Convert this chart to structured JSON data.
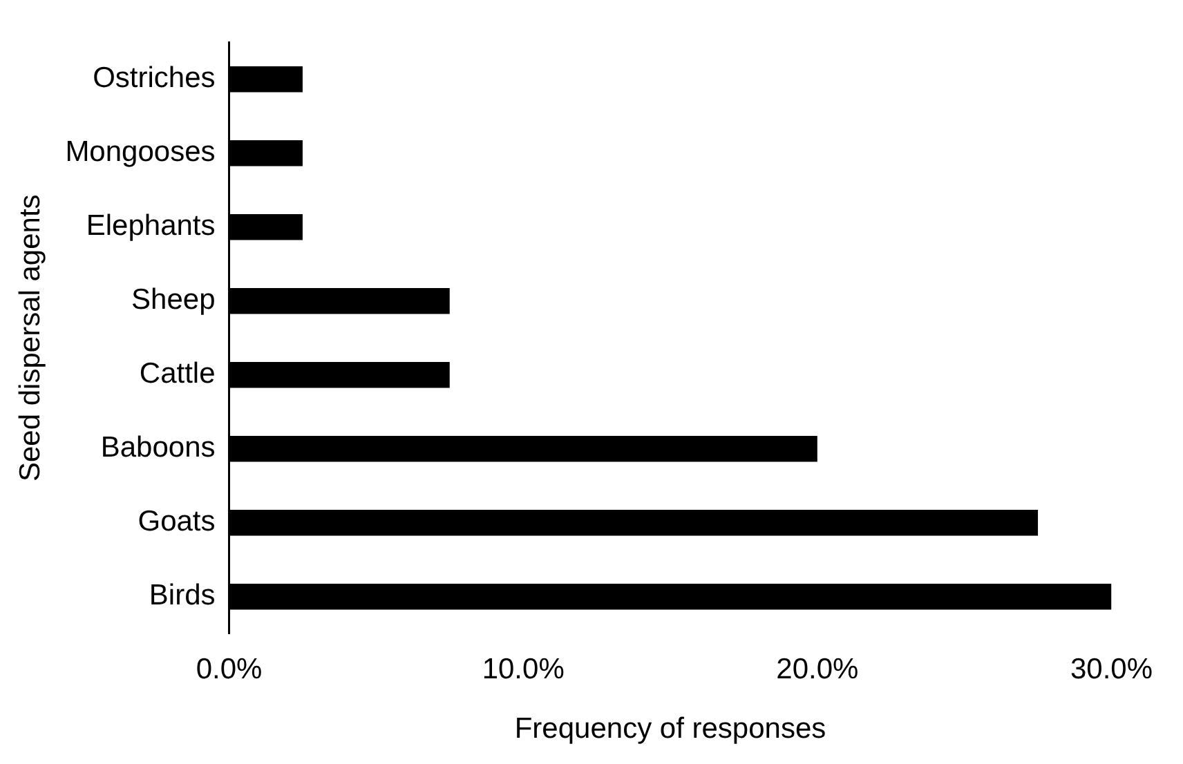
{
  "chart_data": {
    "type": "bar",
    "orientation": "horizontal",
    "xlabel": "Frequency of responses",
    "ylabel": "Seed dispersal agents",
    "categories": [
      "Ostriches",
      "Mongooses",
      "Elephants",
      "Sheep",
      "Cattle",
      "Baboons",
      "Goats",
      "Birds"
    ],
    "values": [
      2.5,
      2.5,
      2.5,
      7.5,
      7.5,
      20,
      27.5,
      30
    ],
    "color": "#000000",
    "xlim": [
      0,
      30
    ],
    "xticks": [
      {
        "value": 0,
        "label": "0.0%"
      },
      {
        "value": 10,
        "label": "10.0%"
      },
      {
        "value": 20,
        "label": "20.0%"
      },
      {
        "value": 30,
        "label": "30.0%"
      }
    ],
    "grid": false,
    "legend": false
  }
}
